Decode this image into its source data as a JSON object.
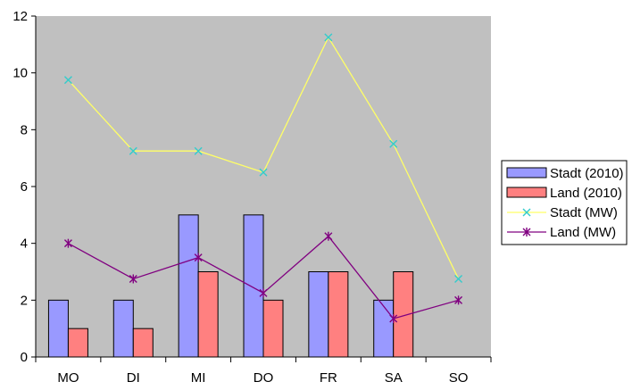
{
  "chart_data": {
    "type": "bar",
    "categories": [
      "MO",
      "DI",
      "MI",
      "DO",
      "FR",
      "SA",
      "SO"
    ],
    "ylim": [
      0,
      12
    ],
    "yticks": [
      0,
      2,
      4,
      6,
      8,
      10,
      12
    ],
    "grid": false,
    "plot_background": "#C0C0C0",
    "legend_position": "right",
    "series": [
      {
        "name": "Stadt (2010)",
        "kind": "bar",
        "color": "#9999FF",
        "values": [
          2,
          2,
          5,
          5,
          3,
          2,
          null
        ]
      },
      {
        "name": "Land (2010)",
        "kind": "bar",
        "color": "#FF8080",
        "values": [
          1,
          1,
          3,
          2,
          3,
          3,
          null
        ]
      },
      {
        "name": "Stadt (MW)",
        "kind": "line",
        "color": "#FFFF66",
        "marker": "x",
        "marker_color": "#33CCCC",
        "values": [
          9.75,
          7.25,
          7.25,
          6.5,
          11.25,
          7.5,
          2.75
        ]
      },
      {
        "name": "Land (MW)",
        "kind": "line",
        "color": "#800080",
        "marker": "star",
        "marker_color": "#800080",
        "values": [
          4,
          2.75,
          3.5,
          2.25,
          4.25,
          1.35,
          2
        ]
      }
    ]
  }
}
